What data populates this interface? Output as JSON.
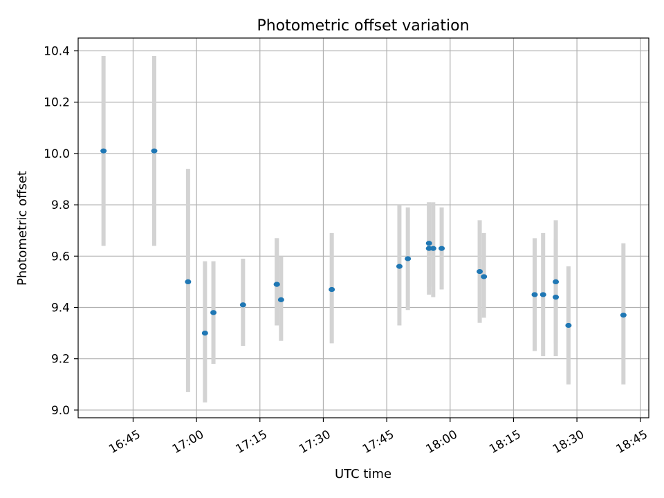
{
  "chart_data": {
    "type": "scatter",
    "title": "Photometric offset variation",
    "xlabel": "UTC time",
    "ylabel": "Photometric offset",
    "xlim": [
      "16:32",
      "18:47"
    ],
    "ylim": [
      8.97,
      10.45
    ],
    "grid": true,
    "xticks": [
      "16:45",
      "17:00",
      "17:15",
      "17:30",
      "17:45",
      "18:00",
      "18:15",
      "18:30",
      "18:45"
    ],
    "yticks": [
      "9.0",
      "9.2",
      "9.4",
      "9.6",
      "9.8",
      "10.0",
      "10.2",
      "10.4"
    ],
    "series": [
      {
        "x": [
          "16:38",
          "16:50",
          "16:58",
          "17:02",
          "17:04",
          "17:11",
          "17:19",
          "17:19",
          "17:20",
          "17:32",
          "17:48",
          "17:50",
          "17:55",
          "17:55",
          "17:56",
          "17:58",
          "18:07",
          "18:08",
          "18:20",
          "18:22",
          "18:25",
          "18:25",
          "18:28",
          "18:41"
        ],
        "y": [
          10.01,
          10.01,
          9.5,
          9.3,
          9.38,
          9.41,
          9.49,
          9.49,
          9.43,
          9.47,
          9.56,
          9.59,
          9.65,
          9.63,
          9.63,
          9.63,
          9.54,
          9.52,
          9.45,
          9.45,
          9.44,
          9.5,
          9.33,
          9.37
        ],
        "yerr_low": [
          9.64,
          9.64,
          9.07,
          9.03,
          9.18,
          9.25,
          9.33,
          9.33,
          9.27,
          9.26,
          9.33,
          9.39,
          9.48,
          9.45,
          9.44,
          9.47,
          9.34,
          9.36,
          9.23,
          9.21,
          9.21,
          9.26,
          9.1,
          9.1
        ],
        "yerr_high": [
          10.38,
          10.38,
          9.94,
          9.58,
          9.58,
          9.59,
          9.67,
          9.67,
          9.6,
          9.69,
          9.8,
          9.79,
          9.81,
          9.81,
          9.81,
          9.79,
          9.74,
          9.69,
          9.67,
          9.69,
          9.67,
          9.74,
          9.56,
          9.65
        ],
        "color": "#1f77b4",
        "errorbar_color": "#d3d3d3"
      }
    ]
  }
}
